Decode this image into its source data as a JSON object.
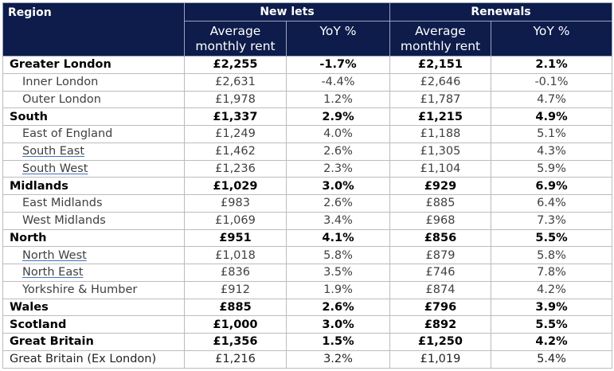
{
  "headers": {
    "region": "Region",
    "new_lets": "New lets",
    "renewals": "Renewals",
    "avg_line1": "Average",
    "avg_line2": "monthly rent",
    "yoy": "YoY %"
  },
  "rows": [
    {
      "region": "Greater London",
      "nl_rent": "£2,255",
      "nl_yoy": "-1.7%",
      "rn_rent": "£2,151",
      "rn_yoy": "2.1%",
      "level": "bold"
    },
    {
      "region": "Inner London",
      "nl_rent": "£2,631",
      "nl_yoy": "-4.4%",
      "rn_rent": "£2,646",
      "rn_yoy": "-0.1%",
      "level": "sub"
    },
    {
      "region": "Outer London",
      "nl_rent": "£1,978",
      "nl_yoy": "1.2%",
      "rn_rent": "£1,787",
      "rn_yoy": "4.7%",
      "level": "sub"
    },
    {
      "region": "South",
      "nl_rent": "£1,337",
      "nl_yoy": "2.9%",
      "rn_rent": "£1,215",
      "rn_yoy": "4.9%",
      "level": "bold"
    },
    {
      "region": "East of England",
      "nl_rent": "£1,249",
      "nl_yoy": "4.0%",
      "rn_rent": "£1,188",
      "rn_yoy": "5.1%",
      "level": "sub"
    },
    {
      "region": "South East",
      "nl_rent": "£1,462",
      "nl_yoy": "2.6%",
      "rn_rent": "£1,305",
      "rn_yoy": "4.3%",
      "level": "sub",
      "underline": true
    },
    {
      "region": "South West",
      "nl_rent": "£1,236",
      "nl_yoy": "2.3%",
      "rn_rent": "£1,104",
      "rn_yoy": "5.9%",
      "level": "sub",
      "underline": true
    },
    {
      "region": "Midlands",
      "nl_rent": "£1,029",
      "nl_yoy": "3.0%",
      "rn_rent": "£929",
      "rn_yoy": "6.9%",
      "level": "bold"
    },
    {
      "region": "East Midlands",
      "nl_rent": "£983",
      "nl_yoy": "2.6%",
      "rn_rent": "£885",
      "rn_yoy": "6.4%",
      "level": "sub"
    },
    {
      "region": "West Midlands",
      "nl_rent": "£1,069",
      "nl_yoy": "3.4%",
      "rn_rent": "£968",
      "rn_yoy": "7.3%",
      "level": "sub"
    },
    {
      "region": "North",
      "nl_rent": "£951",
      "nl_yoy": "4.1%",
      "rn_rent": "£856",
      "rn_yoy": "5.5%",
      "level": "bold"
    },
    {
      "region": "North West",
      "nl_rent": "£1,018",
      "nl_yoy": "5.8%",
      "rn_rent": "£879",
      "rn_yoy": "5.8%",
      "level": "sub",
      "underline": true
    },
    {
      "region": "North East",
      "nl_rent": "£836",
      "nl_yoy": "3.5%",
      "rn_rent": "£746",
      "rn_yoy": "7.8%",
      "level": "sub",
      "underline": true
    },
    {
      "region": "Yorkshire & Humber",
      "nl_rent": "£912",
      "nl_yoy": "1.9%",
      "rn_rent": "£874",
      "rn_yoy": "4.2%",
      "level": "sub"
    },
    {
      "region": "Wales",
      "nl_rent": "£885",
      "nl_yoy": "2.6%",
      "rn_rent": "£796",
      "rn_yoy": "3.9%",
      "level": "bold"
    },
    {
      "region": "Scotland",
      "nl_rent": "£1,000",
      "nl_yoy": "3.0%",
      "rn_rent": "£892",
      "rn_yoy": "5.5%",
      "level": "bold"
    },
    {
      "region": "Great Britain",
      "nl_rent": "£1,356",
      "nl_yoy": "1.5%",
      "rn_rent": "£1,250",
      "rn_yoy": "4.2%",
      "level": "bold"
    },
    {
      "region": "Great Britain (Ex London)",
      "nl_rent": "£1,216",
      "nl_yoy": "3.2%",
      "rn_rent": "£1,019",
      "rn_yoy": "5.4%",
      "level": "plain"
    }
  ],
  "colors": {
    "header_bg": "#0d1c4a",
    "header_text": "#ffffff",
    "underline": "#4472c4"
  }
}
